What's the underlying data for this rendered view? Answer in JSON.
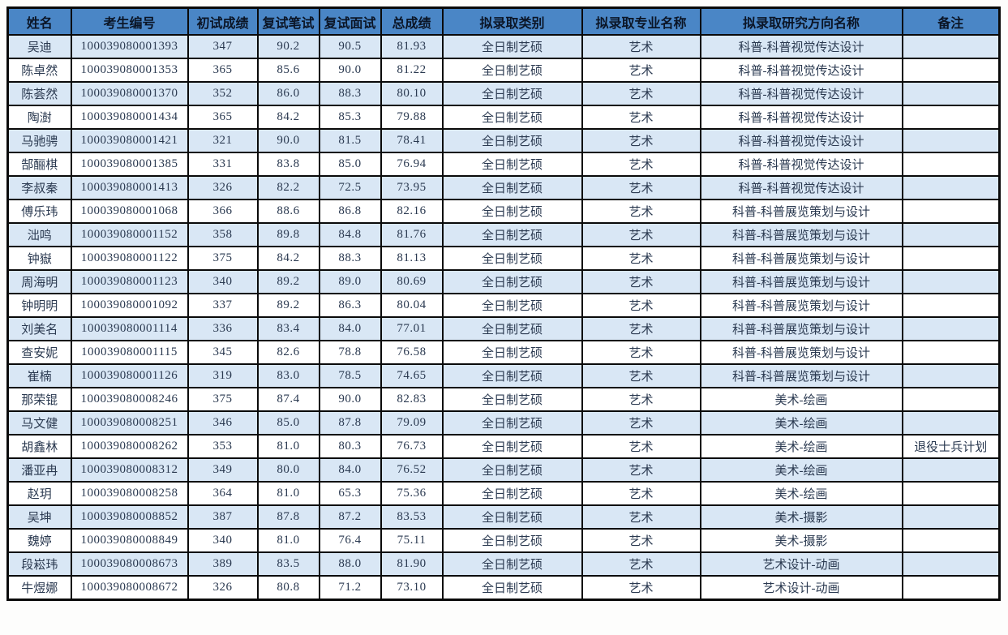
{
  "colors": {
    "header_bg": "#4a86c6",
    "alt_row_bg": "#d9e7f5",
    "plain_row_bg": "#ffffff",
    "border": "#0a0a0a",
    "header_text": "#0b1526",
    "cell_text": "#2a3950"
  },
  "table": {
    "columns": [
      "姓名",
      "考生编号",
      "初试成绩",
      "复试笔试",
      "复试面试",
      "总成绩",
      "拟录取类别",
      "拟录取专业名称",
      "拟录取研究方向名称",
      "备注"
    ],
    "rows": [
      [
        "吴迪",
        "100039080001393",
        "347",
        "90.2",
        "90.5",
        "81.93",
        "全日制艺硕",
        "艺术",
        "科普-科普视觉传达设计",
        ""
      ],
      [
        "陈卓然",
        "100039080001353",
        "365",
        "85.6",
        "90.0",
        "81.22",
        "全日制艺硕",
        "艺术",
        "科普-科普视觉传达设计",
        ""
      ],
      [
        "陈荟然",
        "100039080001370",
        "352",
        "86.0",
        "88.3",
        "80.10",
        "全日制艺硕",
        "艺术",
        "科普-科普视觉传达设计",
        ""
      ],
      [
        "陶澍",
        "100039080001434",
        "365",
        "84.2",
        "85.3",
        "79.88",
        "全日制艺硕",
        "艺术",
        "科普-科普视觉传达设计",
        ""
      ],
      [
        "马驰骋",
        "100039080001421",
        "321",
        "90.0",
        "81.5",
        "78.41",
        "全日制艺硕",
        "艺术",
        "科普-科普视觉传达设计",
        ""
      ],
      [
        "郜酾棋",
        "100039080001385",
        "331",
        "83.8",
        "85.0",
        "76.94",
        "全日制艺硕",
        "艺术",
        "科普-科普视觉传达设计",
        ""
      ],
      [
        "李叔秦",
        "100039080001413",
        "326",
        "82.2",
        "72.5",
        "73.95",
        "全日制艺硕",
        "艺术",
        "科普-科普视觉传达设计",
        ""
      ],
      [
        "傅乐玮",
        "100039080001068",
        "366",
        "88.6",
        "86.8",
        "82.16",
        "全日制艺硕",
        "艺术",
        "科普-科普展览策划与设计",
        ""
      ],
      [
        "泏鸣",
        "100039080001152",
        "358",
        "89.8",
        "84.8",
        "81.76",
        "全日制艺硕",
        "艺术",
        "科普-科普展览策划与设计",
        ""
      ],
      [
        "钟嶽",
        "100039080001122",
        "375",
        "84.2",
        "88.3",
        "81.13",
        "全日制艺硕",
        "艺术",
        "科普-科普展览策划与设计",
        ""
      ],
      [
        "周海明",
        "100039080001123",
        "340",
        "89.2",
        "89.0",
        "80.69",
        "全日制艺硕",
        "艺术",
        "科普-科普展览策划与设计",
        ""
      ],
      [
        "钟明明",
        "100039080001092",
        "337",
        "89.2",
        "86.3",
        "80.04",
        "全日制艺硕",
        "艺术",
        "科普-科普展览策划与设计",
        ""
      ],
      [
        "刘美名",
        "100039080001114",
        "336",
        "83.4",
        "84.0",
        "77.01",
        "全日制艺硕",
        "艺术",
        "科普-科普展览策划与设计",
        ""
      ],
      [
        "查安妮",
        "100039080001115",
        "345",
        "82.6",
        "78.8",
        "76.58",
        "全日制艺硕",
        "艺术",
        "科普-科普展览策划与设计",
        ""
      ],
      [
        "崔楠",
        "100039080001126",
        "319",
        "83.0",
        "78.5",
        "74.65",
        "全日制艺硕",
        "艺术",
        "科普-科普展览策划与设计",
        ""
      ],
      [
        "那荣锟",
        "100039080008246",
        "375",
        "87.4",
        "90.0",
        "82.83",
        "全日制艺硕",
        "艺术",
        "美术-绘画",
        ""
      ],
      [
        "马文健",
        "100039080008251",
        "346",
        "85.0",
        "87.8",
        "79.09",
        "全日制艺硕",
        "艺术",
        "美术-绘画",
        ""
      ],
      [
        "胡鑫林",
        "100039080008262",
        "353",
        "81.0",
        "80.3",
        "76.73",
        "全日制艺硕",
        "艺术",
        "美术-绘画",
        "退役士兵计划"
      ],
      [
        "潘亚冉",
        "100039080008312",
        "349",
        "80.0",
        "84.0",
        "76.52",
        "全日制艺硕",
        "艺术",
        "美术-绘画",
        ""
      ],
      [
        "赵玥",
        "100039080008258",
        "364",
        "81.0",
        "65.3",
        "75.36",
        "全日制艺硕",
        "艺术",
        "美术-绘画",
        ""
      ],
      [
        "吴坤",
        "100039080008852",
        "387",
        "87.8",
        "87.2",
        "83.53",
        "全日制艺硕",
        "艺术",
        "美术-摄影",
        ""
      ],
      [
        "魏婷",
        "100039080008849",
        "340",
        "81.0",
        "76.4",
        "75.11",
        "全日制艺硕",
        "艺术",
        "美术-摄影",
        ""
      ],
      [
        "段崧玮",
        "100039080008673",
        "389",
        "83.5",
        "88.0",
        "81.90",
        "全日制艺硕",
        "艺术",
        "艺术设计-动画",
        ""
      ],
      [
        "牛煜娜",
        "100039080008672",
        "326",
        "80.8",
        "71.2",
        "73.10",
        "全日制艺硕",
        "艺术",
        "艺术设计-动画",
        ""
      ]
    ]
  }
}
